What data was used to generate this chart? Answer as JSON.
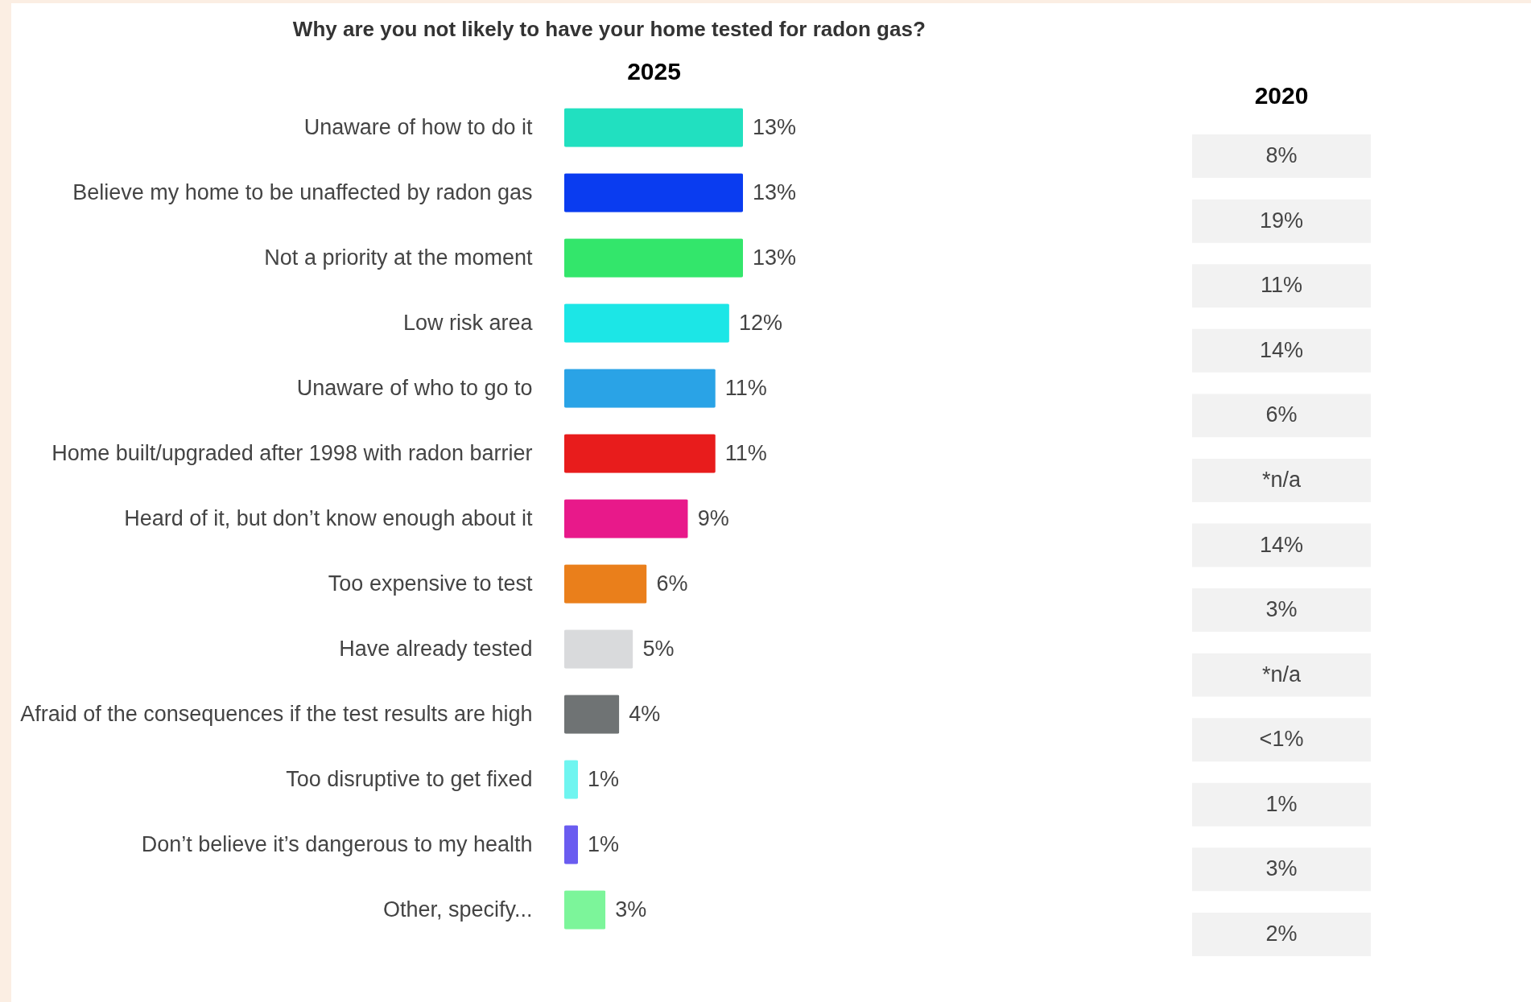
{
  "chart_data": [
    {
      "type": "bar",
      "orientation": "horizontal",
      "title": "Why are you not likely to have your home tested for radon gas?",
      "xlabel": "2025",
      "categories": [
        "Unaware of how to do it",
        "Believe my home to be unaffected by radon gas",
        "Not a priority at the moment",
        "Low risk area",
        "Unaware of who to go to",
        "Home built/upgraded after 1998 with radon barrier",
        "Heard of it, but don’t know enough about it",
        "Too expensive to test",
        "Have already tested",
        "Afraid of the consequences if the test results are high",
        "Too disruptive to get fixed",
        "Don’t believe it’s dangerous to my health",
        "Other, specify..."
      ],
      "values": [
        13,
        13,
        13,
        12,
        11,
        11,
        9,
        6,
        5,
        4,
        1,
        1,
        3
      ],
      "value_labels": [
        "13%",
        "13%",
        "13%",
        "12%",
        "11%",
        "11%",
        "9%",
        "6%",
        "5%",
        "4%",
        "1%",
        "1%",
        "3%"
      ],
      "colors": [
        "#21e0c0",
        "#0a3cf0",
        "#33e66b",
        "#1ce6e6",
        "#2aa3e6",
        "#e81c1c",
        "#e8198a",
        "#ea7f1b",
        "#d9dadc",
        "#6f7374",
        "#6ff5f0",
        "#6a5cf0",
        "#7cf59a"
      ],
      "tick_labels": "y"
    },
    {
      "type": "other",
      "title": "2020",
      "annotations": [
        "8%",
        "19%",
        "11%",
        "14%",
        "6%",
        "*n/a",
        "14%",
        "3%",
        "*n/a",
        "<1%",
        "1%",
        "3%",
        "2%"
      ]
    }
  ]
}
